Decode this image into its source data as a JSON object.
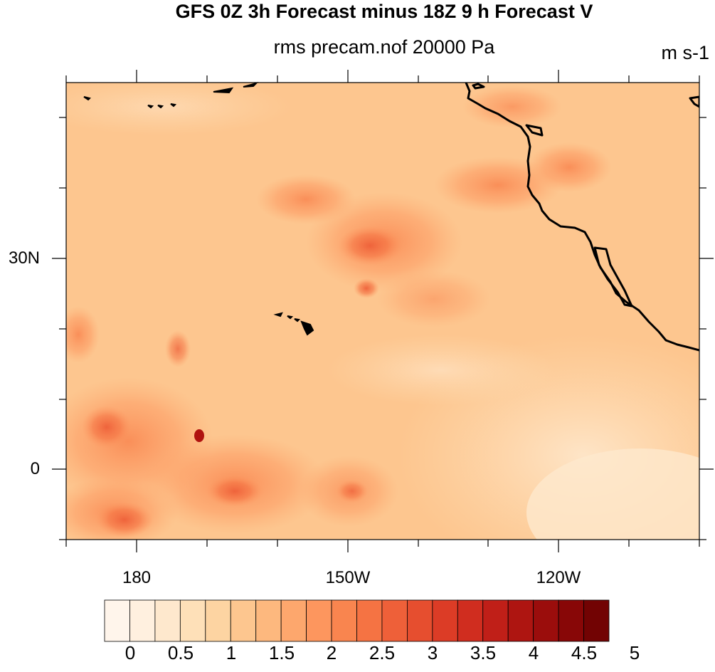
{
  "title": "GFS 0Z 3h Forecast minus 18Z 9 h Forecast V",
  "subtitle": "rms precam.nof 20000 Pa",
  "units": "m s-1",
  "map": {
    "y_tick_labels": [
      "30N",
      "0"
    ],
    "x_tick_labels": [
      "180",
      "150W",
      "120W"
    ]
  },
  "colorbar": {
    "labels": [
      "0",
      "0.5",
      "1",
      "1.5",
      "2",
      "2.5",
      "3",
      "3.5",
      "4",
      "4.5",
      "5"
    ],
    "colors": [
      "#fff5eb",
      "#fff0df",
      "#fee8cd",
      "#fee0b8",
      "#fdd4a2",
      "#fdc68f",
      "#fdb87e",
      "#fda76d",
      "#fd965e",
      "#f9854f",
      "#f57343",
      "#ee6039",
      "#e64e2f",
      "#dc3c26",
      "#d02d1f",
      "#c01f18",
      "#ae1511",
      "#9b0d0c",
      "#880707",
      "#720303"
    ]
  }
}
